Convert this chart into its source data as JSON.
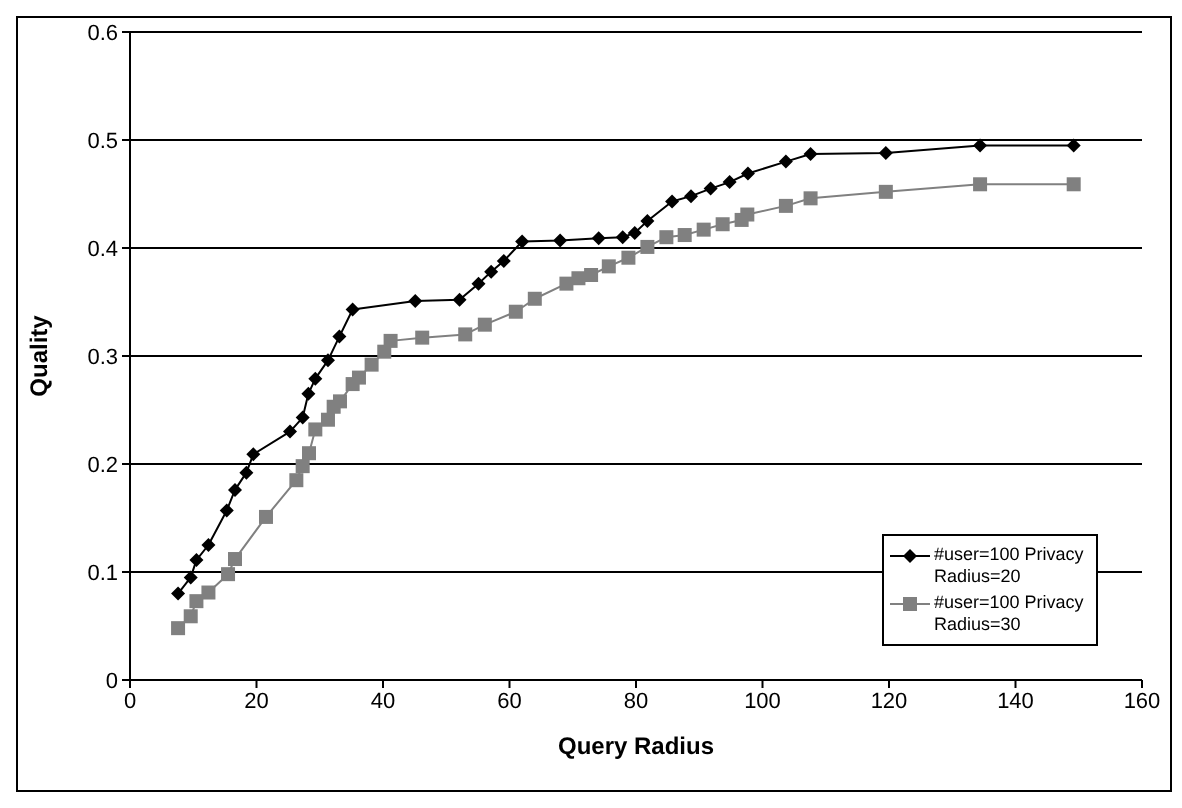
{
  "chart_data": {
    "type": "line",
    "xlabel": "Query Radius",
    "ylabel": "Quality",
    "xlim": [
      0,
      160
    ],
    "xticks": [
      0,
      20,
      40,
      60,
      80,
      100,
      120,
      140,
      160
    ],
    "ylim": [
      0,
      0.6
    ],
    "yticks": [
      0,
      0.1,
      0.2,
      0.3,
      0.4,
      0.5,
      0.6
    ],
    "grid": "y",
    "legend": "bottom right",
    "line_style": "solid",
    "series": [
      {
        "name": "#user=100 Privacy Radius=20",
        "color": "#000000",
        "marker": "diamond",
        "x": [
          7.6,
          9.6,
          10.5,
          12.4,
          15.3,
          16.6,
          18.4,
          19.5,
          25.3,
          27.3,
          28.2,
          29.3,
          31.3,
          33.1,
          35.2,
          45.1,
          52.1,
          55.1,
          57.1,
          59.1,
          62,
          68,
          74.1,
          77.9,
          79.8,
          81.8,
          85.7,
          88.7,
          91.8,
          94.8,
          97.7,
          103.7,
          107.6,
          119.5,
          134.4,
          149.2
        ],
        "values": [
          0.08,
          0.095,
          0.111,
          0.125,
          0.157,
          0.176,
          0.192,
          0.209,
          0.23,
          0.243,
          0.265,
          0.279,
          0.296,
          0.318,
          0.343,
          0.351,
          0.352,
          0.367,
          0.378,
          0.388,
          0.406,
          0.407,
          0.409,
          0.41,
          0.414,
          0.425,
          0.443,
          0.448,
          0.455,
          0.461,
          0.469,
          0.48,
          0.487,
          0.488,
          0.495,
          0.495
        ]
      },
      {
        "name": "#user=100 Privacy Radius=30",
        "color": "#808080",
        "marker": "square",
        "x": [
          7.6,
          9.6,
          10.5,
          12.4,
          15.5,
          16.6,
          21.5,
          26.3,
          27.3,
          28.3,
          29.3,
          31.3,
          32.2,
          33.2,
          35.2,
          36.2,
          38.2,
          40.2,
          41.2,
          46.2,
          53,
          56.1,
          61,
          64,
          69,
          70.9,
          72.9,
          75.7,
          78.8,
          81.8,
          84.8,
          87.7,
          90.7,
          93.7,
          96.7,
          97.6,
          103.7,
          107.6,
          119.5,
          134.4,
          149.2
        ],
        "values": [
          0.048,
          0.059,
          0.073,
          0.081,
          0.098,
          0.112,
          0.151,
          0.185,
          0.198,
          0.21,
          0.232,
          0.241,
          0.253,
          0.258,
          0.274,
          0.28,
          0.292,
          0.304,
          0.314,
          0.317,
          0.32,
          0.329,
          0.341,
          0.353,
          0.367,
          0.372,
          0.375,
          0.383,
          0.391,
          0.401,
          0.41,
          0.412,
          0.417,
          0.422,
          0.426,
          0.431,
          0.439,
          0.446,
          0.452,
          0.459,
          0.459
        ]
      }
    ]
  }
}
